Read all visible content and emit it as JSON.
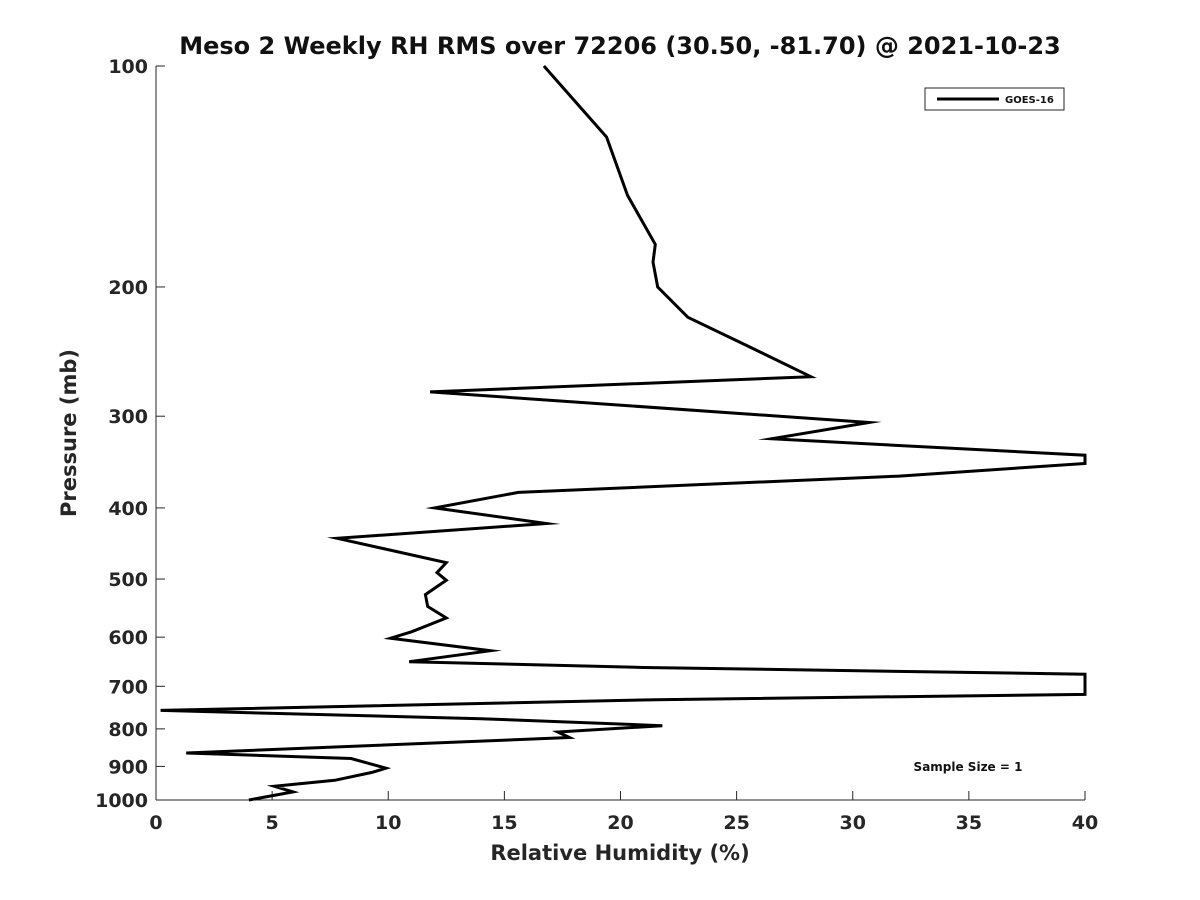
{
  "chart_data": {
    "type": "line",
    "title": "Meso 2 Weekly RH RMS over 72206 (30.50, -81.70) @ 2021-10-23",
    "xlabel": "Relative Humidity (%)",
    "ylabel": "Pressure (mb)",
    "xlim": [
      0,
      40
    ],
    "ylim": [
      100,
      1000
    ],
    "y_scale": "log",
    "y_reversed": true,
    "x_ticks": [
      "0",
      "5",
      "10",
      "15",
      "20",
      "25",
      "30",
      "35",
      "40"
    ],
    "y_ticks": [
      "100",
      "200",
      "300",
      "400",
      "500",
      "600",
      "700",
      "800",
      "900",
      "1000"
    ],
    "grid": false,
    "legend_position": "top-right",
    "annotation": "Sample Size = 1",
    "series": [
      {
        "name": "GOES-16",
        "color": "#000000",
        "points": [
          [
            16.7,
            100
          ],
          [
            19.4,
            125
          ],
          [
            20.3,
            150
          ],
          [
            21.5,
            175
          ],
          [
            21.4,
            185
          ],
          [
            21.6,
            200
          ],
          [
            22.9,
            220
          ],
          [
            25.4,
            240
          ],
          [
            28.2,
            265
          ],
          [
            11.8,
            278
          ],
          [
            30.7,
            306
          ],
          [
            26.5,
            322
          ],
          [
            40,
            339
          ],
          [
            40,
            348
          ],
          [
            32,
            362
          ],
          [
            15.6,
            381
          ],
          [
            12.0,
            400
          ],
          [
            16.8,
            420
          ],
          [
            7.8,
            440
          ],
          [
            12.5,
            475
          ],
          [
            12.1,
            490
          ],
          [
            12.5,
            502
          ],
          [
            11.6,
            525
          ],
          [
            11.7,
            545
          ],
          [
            12.5,
            565
          ],
          [
            11.0,
            590
          ],
          [
            10.1,
            602
          ],
          [
            14.4,
            626
          ],
          [
            10.9,
            648
          ],
          [
            21,
            660
          ],
          [
            40,
            674
          ],
          [
            40,
            718
          ],
          [
            21.5,
            730
          ],
          [
            0.2,
            755
          ],
          [
            14.0,
            775
          ],
          [
            21.8,
            792
          ],
          [
            17.3,
            808
          ],
          [
            17.8,
            822
          ],
          [
            1.3,
            863
          ],
          [
            8.4,
            878
          ],
          [
            9.9,
            905
          ],
          [
            9.3,
            917
          ],
          [
            7.7,
            940
          ],
          [
            5.1,
            958
          ],
          [
            5.9,
            975
          ],
          [
            4.0,
            1000
          ]
        ]
      }
    ]
  }
}
